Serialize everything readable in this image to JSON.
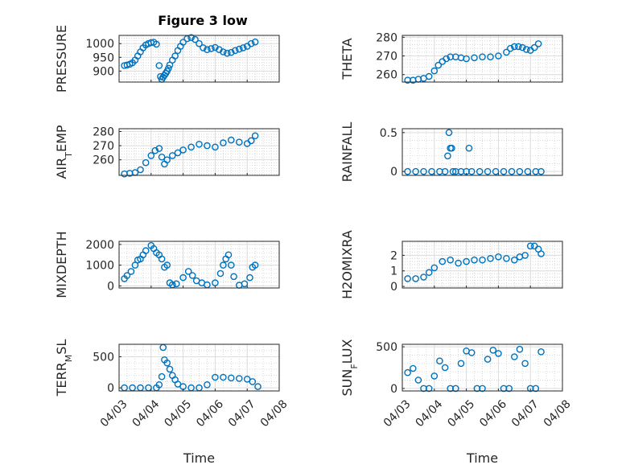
{
  "figure_title": "Figure 3 low",
  "colors": {
    "marker": "#0072BD",
    "axis": "#262626"
  },
  "chart_data": [
    {
      "type": "scatter",
      "ylabel": "PRESSURE",
      "xlabel": "",
      "ylim": [
        860,
        1030
      ],
      "yticks": [
        900,
        950,
        1000
      ],
      "xlim": [
        "2023-04-03",
        "2023-04-08"
      ],
      "grid": true,
      "minor_grid": true,
      "x": [
        "2023-04-03 04:00",
        "2023-04-03 06:00",
        "2023-04-03 08:00",
        "2023-04-03 10:00",
        "2023-04-03 12:00",
        "2023-04-03 14:00",
        "2023-04-03 16:00",
        "2023-04-03 18:00",
        "2023-04-03 20:00",
        "2023-04-03 22:00",
        "2023-04-04 00:00",
        "2023-04-04 02:00",
        "2023-04-04 04:00",
        "2023-04-04 06:00",
        "2023-04-04 07:00",
        "2023-04-04 08:00",
        "2023-04-04 09:00",
        "2023-04-04 10:00",
        "2023-04-04 11:00",
        "2023-04-04 12:00",
        "2023-04-04 13:00",
        "2023-04-04 14:00",
        "2023-04-04 16:00",
        "2023-04-04 18:00",
        "2023-04-04 20:00",
        "2023-04-04 22:00",
        "2023-04-05 00:00",
        "2023-04-05 03:00",
        "2023-04-05 06:00",
        "2023-04-05 09:00",
        "2023-04-05 12:00",
        "2023-04-05 15:00",
        "2023-04-05 18:00",
        "2023-04-05 21:00",
        "2023-04-06 00:00",
        "2023-04-06 03:00",
        "2023-04-06 06:00",
        "2023-04-06 09:00",
        "2023-04-06 12:00",
        "2023-04-06 15:00",
        "2023-04-06 18:00",
        "2023-04-06 21:00",
        "2023-04-07 00:00",
        "2023-04-07 03:00",
        "2023-04-07 06:00"
      ],
      "values": [
        920,
        922,
        925,
        930,
        940,
        955,
        970,
        985,
        995,
        1000,
        1004,
        1005,
        998,
        920,
        880,
        870,
        878,
        885,
        892,
        900,
        910,
        922,
        940,
        955,
        975,
        990,
        1005,
        1018,
        1022,
        1015,
        1000,
        985,
        978,
        982,
        986,
        978,
        970,
        965,
        968,
        975,
        980,
        985,
        990,
        1000,
        1006
      ]
    },
    {
      "type": "scatter",
      "ylabel": "THETA",
      "xlabel": "",
      "ylim": [
        256,
        281
      ],
      "yticks": [
        260,
        270,
        280
      ],
      "xlim": [
        "2023-04-03",
        "2023-04-08"
      ],
      "grid": true,
      "minor_grid": true,
      "x": [
        "2023-04-03 04:00",
        "2023-04-03 08:00",
        "2023-04-03 12:00",
        "2023-04-03 16:00",
        "2023-04-03 20:00",
        "2023-04-04 00:00",
        "2023-04-04 03:00",
        "2023-04-04 06:00",
        "2023-04-04 09:00",
        "2023-04-04 12:00",
        "2023-04-04 16:00",
        "2023-04-04 20:00",
        "2023-04-05 00:00",
        "2023-04-05 06:00",
        "2023-04-05 12:00",
        "2023-04-05 18:00",
        "2023-04-06 00:00",
        "2023-04-06 06:00",
        "2023-04-06 09:00",
        "2023-04-06 12:00",
        "2023-04-06 15:00",
        "2023-04-06 18:00",
        "2023-04-06 21:00",
        "2023-04-07 00:00",
        "2023-04-07 03:00",
        "2023-04-07 06:00"
      ],
      "values": [
        257,
        257,
        257.5,
        258,
        259,
        262,
        265,
        267,
        268.5,
        269.5,
        269.5,
        269,
        268.5,
        269,
        269.5,
        269.5,
        270,
        272,
        274,
        275,
        275,
        274.5,
        273.5,
        273,
        274.5,
        276.5
      ]
    },
    {
      "type": "scatter",
      "ylabel": "AIR_TEMP",
      "xlabel": "",
      "ylim": [
        249,
        282
      ],
      "yticks": [
        260,
        270,
        280
      ],
      "xlim": [
        "2023-04-03",
        "2023-04-08"
      ],
      "grid": true,
      "minor_grid": true,
      "x": [
        "2023-04-03 04:00",
        "2023-04-03 08:00",
        "2023-04-03 12:00",
        "2023-04-03 16:00",
        "2023-04-03 20:00",
        "2023-04-04 00:00",
        "2023-04-04 03:00",
        "2023-04-04 06:00",
        "2023-04-04 08:00",
        "2023-04-04 10:00",
        "2023-04-04 12:00",
        "2023-04-04 16:00",
        "2023-04-04 20:00",
        "2023-04-05 00:00",
        "2023-04-05 06:00",
        "2023-04-05 12:00",
        "2023-04-05 18:00",
        "2023-04-06 00:00",
        "2023-04-06 06:00",
        "2023-04-06 12:00",
        "2023-04-06 18:00",
        "2023-04-07 00:00",
        "2023-04-07 03:00",
        "2023-04-07 06:00"
      ],
      "values": [
        250,
        250.5,
        251,
        253,
        258,
        263,
        266.5,
        268,
        262,
        257,
        260,
        263,
        265,
        267,
        269,
        271,
        270,
        269,
        272,
        274,
        272.5,
        271.5,
        273.5,
        277
      ]
    },
    {
      "type": "scatter",
      "ylabel": "RAINFALL",
      "xlabel": "",
      "ylim": [
        -0.05,
        0.55
      ],
      "yticks": [
        0,
        0.5
      ],
      "xlim": [
        "2023-04-03",
        "2023-04-08"
      ],
      "grid": true,
      "minor_grid": true,
      "x": [
        "2023-04-03 04:00",
        "2023-04-03 10:00",
        "2023-04-03 16:00",
        "2023-04-03 22:00",
        "2023-04-04 04:00",
        "2023-04-04 08:00",
        "2023-04-04 10:00",
        "2023-04-04 11:00",
        "2023-04-04 12:00",
        "2023-04-04 13:00",
        "2023-04-04 14:00",
        "2023-04-04 16:00",
        "2023-04-04 20:00",
        "2023-04-05 00:00",
        "2023-04-05 02:00",
        "2023-04-05 04:00",
        "2023-04-05 10:00",
        "2023-04-05 16:00",
        "2023-04-05 22:00",
        "2023-04-06 04:00",
        "2023-04-06 10:00",
        "2023-04-06 16:00",
        "2023-04-06 22:00",
        "2023-04-07 04:00",
        "2023-04-07 08:00"
      ],
      "values": [
        0,
        0,
        0,
        0,
        0,
        0,
        0.2,
        0.5,
        0.3,
        0.3,
        0,
        0,
        0,
        0,
        0.3,
        0,
        0,
        0,
        0,
        0,
        0,
        0,
        0,
        0,
        0
      ]
    },
    {
      "type": "scatter",
      "ylabel": "MIXDEPTH",
      "xlabel": "",
      "ylim": [
        -100,
        2150
      ],
      "yticks": [
        0,
        1000,
        2000
      ],
      "xlim": [
        "2023-04-03",
        "2023-04-08"
      ],
      "grid": true,
      "minor_grid": true,
      "x": [
        "2023-04-03 04:00",
        "2023-04-03 06:00",
        "2023-04-03 09:00",
        "2023-04-03 12:00",
        "2023-04-03 14:00",
        "2023-04-03 16:00",
        "2023-04-03 18:00",
        "2023-04-03 20:00",
        "2023-04-04 00:00",
        "2023-04-04 02:00",
        "2023-04-04 04:00",
        "2023-04-04 06:00",
        "2023-04-04 08:00",
        "2023-04-04 10:00",
        "2023-04-04 12:00",
        "2023-04-04 14:00",
        "2023-04-04 16:00",
        "2023-04-04 19:00",
        "2023-04-05 00:00",
        "2023-04-05 04:00",
        "2023-04-05 07:00",
        "2023-04-05 10:00",
        "2023-04-05 14:00",
        "2023-04-05 18:00",
        "2023-04-06 00:00",
        "2023-04-06 04:00",
        "2023-04-06 06:00",
        "2023-04-06 08:00",
        "2023-04-06 10:00",
        "2023-04-06 12:00",
        "2023-04-06 14:00",
        "2023-04-06 18:00",
        "2023-04-06 22:00",
        "2023-04-07 02:00",
        "2023-04-07 04:00",
        "2023-04-07 06:00"
      ],
      "values": [
        350,
        500,
        700,
        1000,
        1250,
        1300,
        1500,
        1700,
        1950,
        1800,
        1600,
        1500,
        1300,
        900,
        1000,
        150,
        50,
        100,
        400,
        700,
        500,
        250,
        150,
        50,
        150,
        600,
        1000,
        1300,
        1500,
        1000,
        450,
        30,
        100,
        400,
        900,
        1000
      ]
    },
    {
      "type": "scatter",
      "ylabel": "H2OMIXRA",
      "xlabel": "",
      "ylim": [
        -0.1,
        2.9
      ],
      "yticks": [
        0,
        1,
        2
      ],
      "xlim": [
        "2023-04-03",
        "2023-04-08"
      ],
      "grid": true,
      "minor_grid": true,
      "x": [
        "2023-04-03 04:00",
        "2023-04-03 10:00",
        "2023-04-03 16:00",
        "2023-04-03 20:00",
        "2023-04-04 00:00",
        "2023-04-04 06:00",
        "2023-04-04 12:00",
        "2023-04-04 18:00",
        "2023-04-05 00:00",
        "2023-04-05 06:00",
        "2023-04-05 12:00",
        "2023-04-05 18:00",
        "2023-04-06 00:00",
        "2023-04-06 06:00",
        "2023-04-06 12:00",
        "2023-04-06 16:00",
        "2023-04-06 20:00",
        "2023-04-07 00:00",
        "2023-04-07 03:00",
        "2023-04-07 06:00",
        "2023-04-07 08:00"
      ],
      "values": [
        0.5,
        0.5,
        0.6,
        0.9,
        1.2,
        1.6,
        1.7,
        1.5,
        1.6,
        1.7,
        1.7,
        1.8,
        1.9,
        1.8,
        1.7,
        1.9,
        2.0,
        2.6,
        2.6,
        2.4,
        2.1
      ]
    },
    {
      "type": "scatter",
      "ylabel": "TERR_MSL",
      "xlabel": "Time",
      "ylim": [
        -50,
        700
      ],
      "yticks": [
        0,
        500
      ],
      "xlim": [
        "2023-04-03",
        "2023-04-08"
      ],
      "xticks": [
        "04/03",
        "04/04",
        "04/05",
        "04/06",
        "04/07",
        "04/08"
      ],
      "grid": true,
      "minor_grid": true,
      "x": [
        "2023-04-03 04:00",
        "2023-04-03 10:00",
        "2023-04-03 16:00",
        "2023-04-03 22:00",
        "2023-04-04 04:00",
        "2023-04-04 06:00",
        "2023-04-04 08:00",
        "2023-04-04 09:00",
        "2023-04-04 10:00",
        "2023-04-04 12:00",
        "2023-04-04 14:00",
        "2023-04-04 16:00",
        "2023-04-04 18:00",
        "2023-04-04 20:00",
        "2023-04-05 00:00",
        "2023-04-05 06:00",
        "2023-04-05 12:00",
        "2023-04-05 18:00",
        "2023-04-06 00:00",
        "2023-04-06 06:00",
        "2023-04-06 12:00",
        "2023-04-06 18:00",
        "2023-04-07 00:00",
        "2023-04-07 04:00",
        "2023-04-07 08:00"
      ],
      "values": [
        0,
        0,
        0,
        0,
        0,
        50,
        180,
        650,
        450,
        400,
        300,
        200,
        130,
        60,
        20,
        0,
        0,
        50,
        170,
        170,
        160,
        150,
        140,
        100,
        20
      ]
    },
    {
      "type": "scatter",
      "ylabel": "SUN_FLUX",
      "xlabel": "Time",
      "ylim": [
        -30,
        530
      ],
      "yticks": [
        0,
        500
      ],
      "xlim": [
        "2023-04-03",
        "2023-04-08"
      ],
      "xticks": [
        "04/03",
        "04/04",
        "04/05",
        "04/06",
        "04/07",
        "04/08"
      ],
      "grid": true,
      "minor_grid": true,
      "x": [
        "2023-04-03 04:00",
        "2023-04-03 08:00",
        "2023-04-03 12:00",
        "2023-04-03 16:00",
        "2023-04-03 20:00",
        "2023-04-04 00:00",
        "2023-04-04 04:00",
        "2023-04-04 08:00",
        "2023-04-04 12:00",
        "2023-04-04 16:00",
        "2023-04-04 20:00",
        "2023-04-05 00:00",
        "2023-04-05 04:00",
        "2023-04-05 08:00",
        "2023-04-05 12:00",
        "2023-04-05 16:00",
        "2023-04-05 20:00",
        "2023-04-06 00:00",
        "2023-04-06 04:00",
        "2023-04-06 08:00",
        "2023-04-06 12:00",
        "2023-04-06 16:00",
        "2023-04-06 20:00",
        "2023-04-07 00:00",
        "2023-04-07 04:00",
        "2023-04-07 08:00"
      ],
      "values": [
        190,
        240,
        100,
        0,
        0,
        150,
        330,
        250,
        0,
        0,
        300,
        450,
        430,
        0,
        0,
        350,
        460,
        420,
        0,
        0,
        380,
        470,
        300,
        0,
        0,
        440
      ]
    }
  ]
}
